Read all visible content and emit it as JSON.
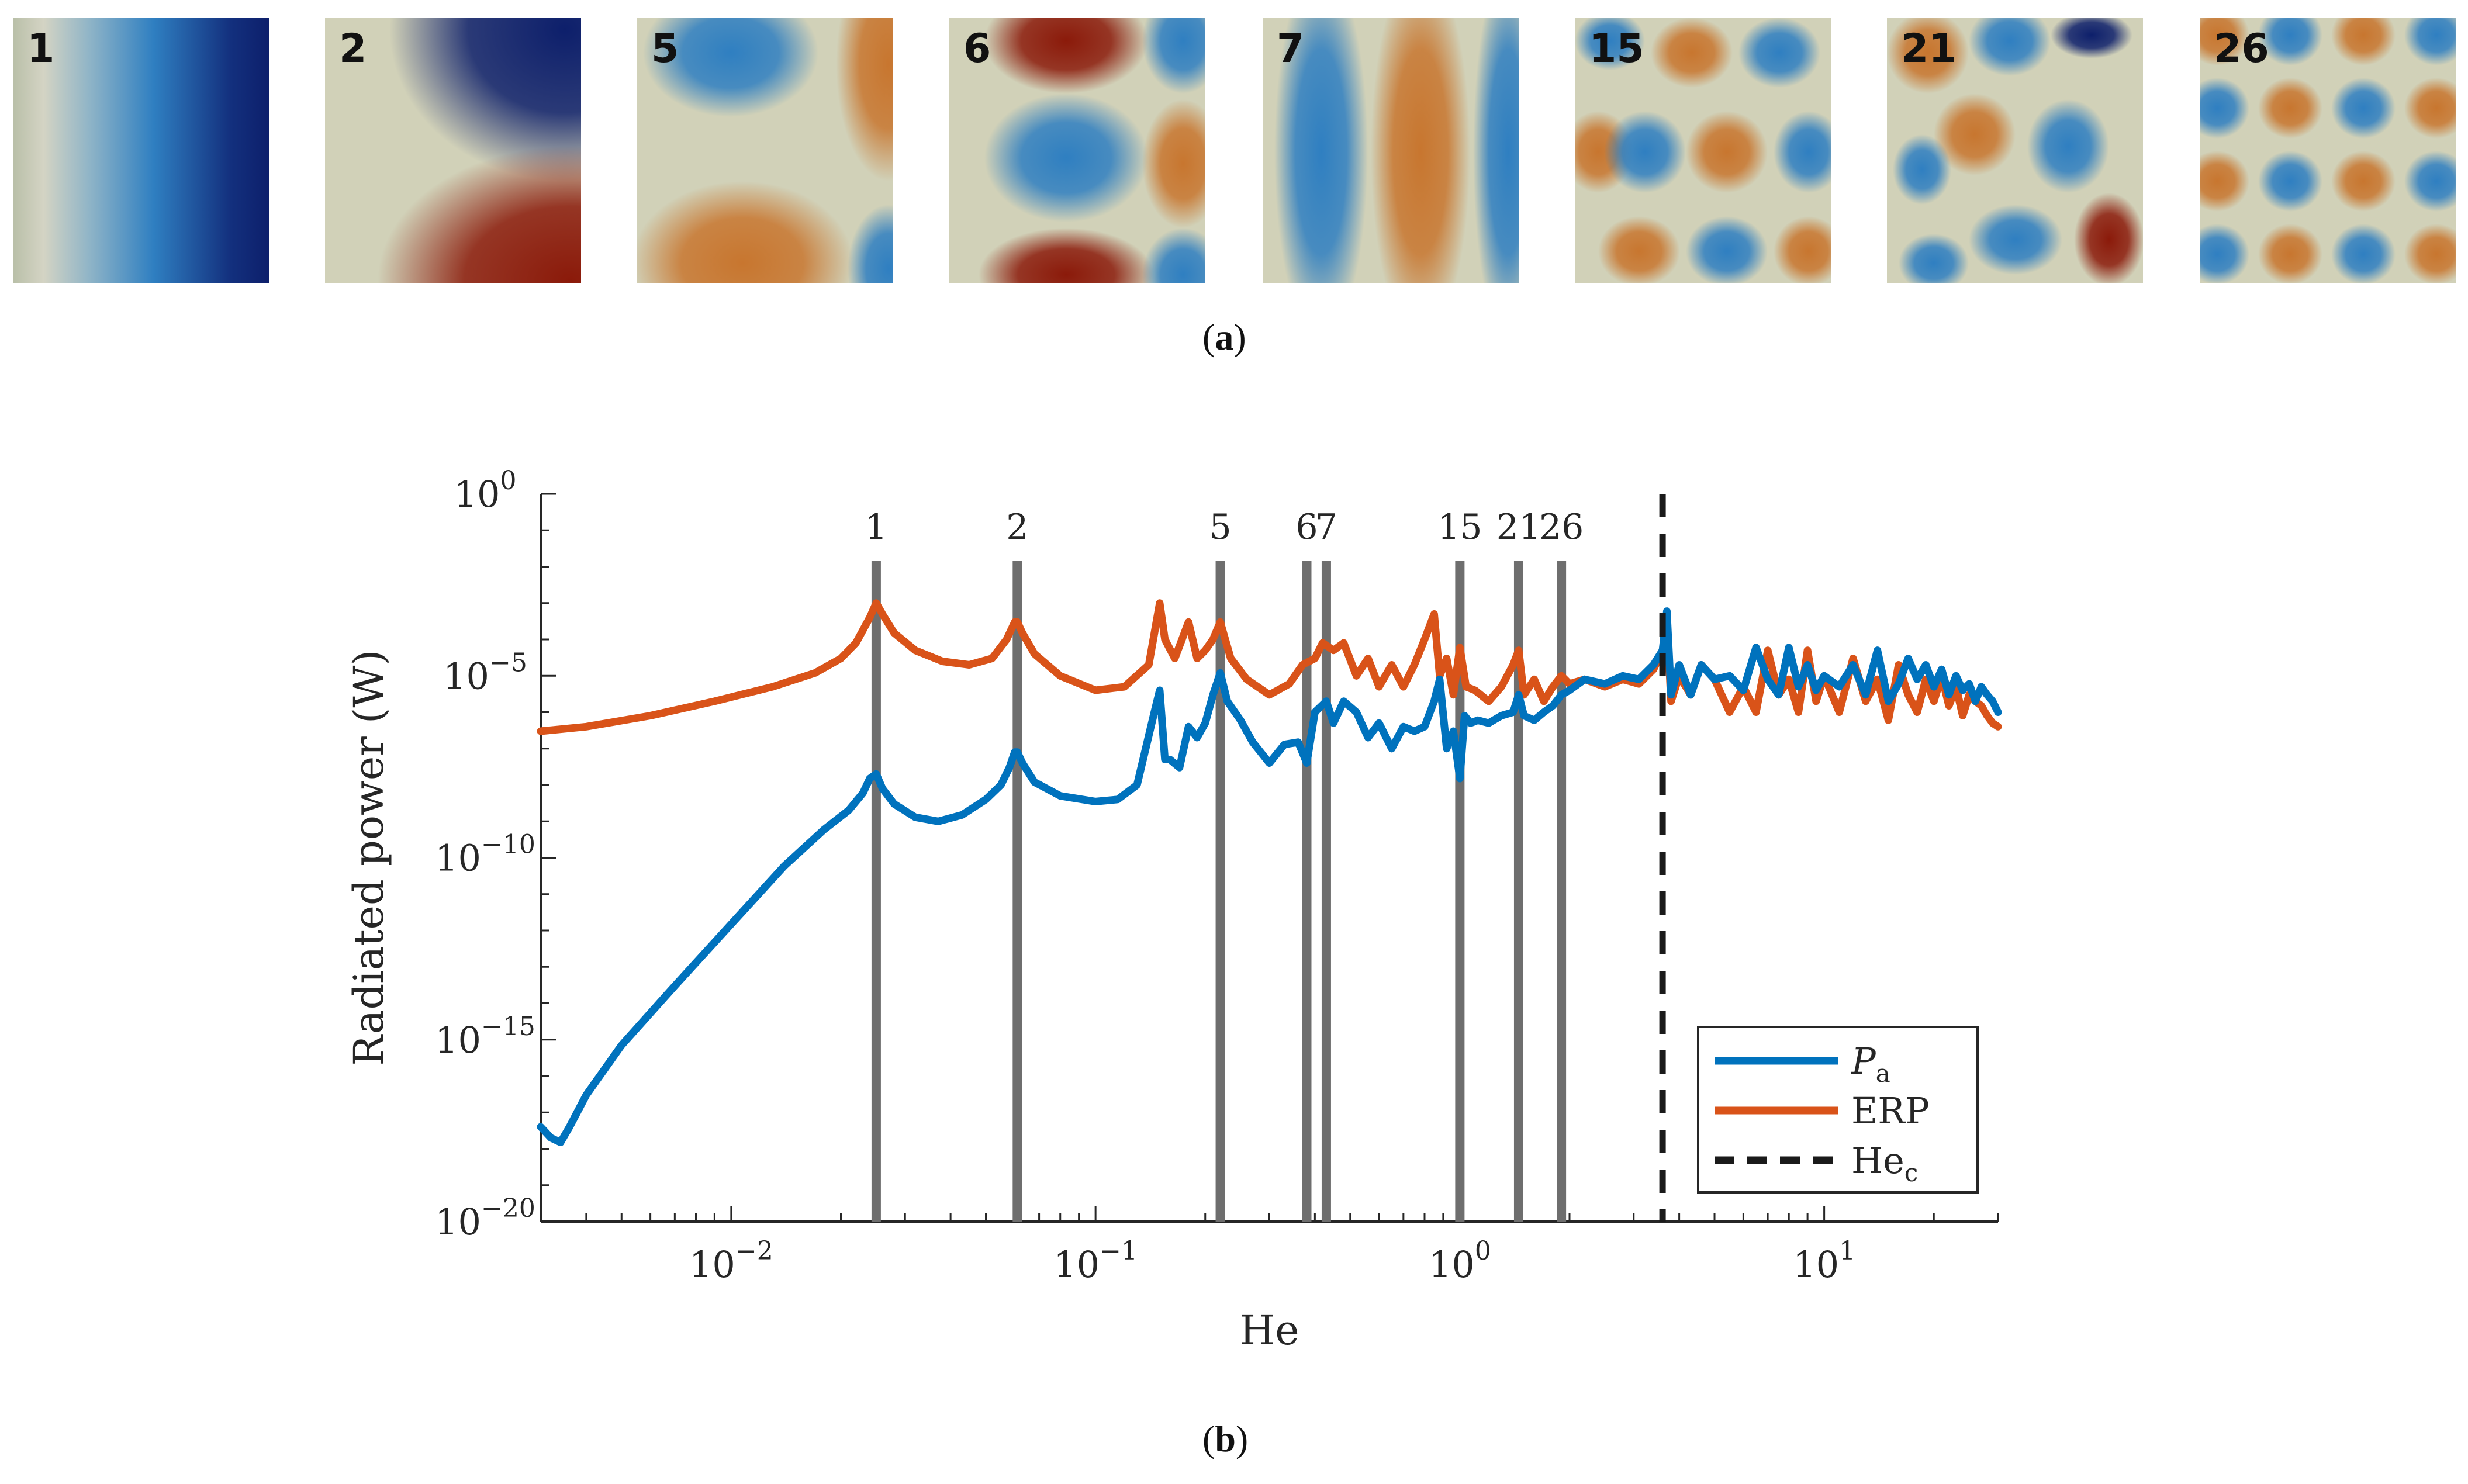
{
  "panel_a": {
    "caption_letter": "a",
    "modes": [
      {
        "label": "1",
        "pattern": "m1"
      },
      {
        "label": "2",
        "pattern": "m2"
      },
      {
        "label": "5",
        "pattern": "m5"
      },
      {
        "label": "6",
        "pattern": "m6"
      },
      {
        "label": "7",
        "pattern": "m7"
      },
      {
        "label": "15",
        "pattern": "m15"
      },
      {
        "label": "21",
        "pattern": "m21"
      },
      {
        "label": "26",
        "pattern": "m26"
      }
    ],
    "colormap": {
      "low": "#0d1f6b",
      "mid_low": "#2f7fc1",
      "mid": "#d4d4c4",
      "mid_high": "#c8762f",
      "high": "#8b1a0a"
    }
  },
  "panel_b": {
    "caption_letter": "b"
  },
  "chart_data": {
    "type": "line",
    "xscale": "log",
    "yscale": "log",
    "xlim": [
      0.003,
      30
    ],
    "ylim": [
      1e-20,
      1
    ],
    "xlabel": "He",
    "ylabel": "Radiated power (W)",
    "x_ticks": [
      {
        "value": 0.01,
        "base": "10",
        "exp": "−2"
      },
      {
        "value": 0.1,
        "base": "10",
        "exp": "−1"
      },
      {
        "value": 1,
        "base": "10",
        "exp": "0"
      },
      {
        "value": 10,
        "base": "10",
        "exp": "1"
      }
    ],
    "y_ticks": [
      {
        "value": 1,
        "base": "10",
        "exp": "0"
      },
      {
        "value": 1e-05,
        "base": "10",
        "exp": "−5"
      },
      {
        "value": 1e-10,
        "base": "10",
        "exp": "−10"
      },
      {
        "value": 1e-15,
        "base": "10",
        "exp": "−15"
      },
      {
        "value": 1e-20,
        "base": "10",
        "exp": "−20"
      }
    ],
    "mode_lines": [
      {
        "label": "1",
        "x": 0.025
      },
      {
        "label": "2",
        "x": 0.061
      },
      {
        "label": "5",
        "x": 0.22
      },
      {
        "label": "6",
        "x": 0.38
      },
      {
        "label": "7",
        "x": 0.43
      },
      {
        "label": "15",
        "x": 1.0
      },
      {
        "label": "21",
        "x": 1.45
      },
      {
        "label": "26",
        "x": 1.9
      }
    ],
    "critical": {
      "label": "He",
      "subscript": "c",
      "x": 3.6
    },
    "series": [
      {
        "name": "P",
        "subscript": "a",
        "color": "#0072bd",
        "x": [
          0.003,
          0.0032,
          0.0034,
          0.0036,
          0.004,
          0.005,
          0.007,
          0.01,
          0.014,
          0.018,
          0.021,
          0.023,
          0.024,
          0.025,
          0.026,
          0.028,
          0.032,
          0.037,
          0.043,
          0.05,
          0.055,
          0.058,
          0.06,
          0.061,
          0.063,
          0.068,
          0.08,
          0.1,
          0.115,
          0.13,
          0.145,
          0.15,
          0.155,
          0.16,
          0.17,
          0.18,
          0.19,
          0.2,
          0.21,
          0.22,
          0.23,
          0.25,
          0.27,
          0.3,
          0.33,
          0.36,
          0.38,
          0.4,
          0.43,
          0.45,
          0.48,
          0.52,
          0.56,
          0.6,
          0.65,
          0.7,
          0.75,
          0.8,
          0.85,
          0.88,
          0.92,
          0.96,
          1.0,
          1.03,
          1.07,
          1.12,
          1.2,
          1.3,
          1.4,
          1.45,
          1.5,
          1.6,
          1.7,
          1.8,
          1.9,
          2.0,
          2.2,
          2.5,
          2.8,
          3.1,
          3.4,
          3.6,
          3.7,
          3.8,
          4.0,
          4.3,
          4.6,
          5.0,
          5.5,
          6.0,
          6.5,
          7.0,
          7.5,
          8.0,
          8.5,
          9.0,
          9.5,
          10,
          11,
          12,
          13,
          14,
          15,
          16,
          17,
          18,
          19,
          20,
          21,
          22,
          23,
          24,
          25,
          26,
          27,
          28,
          29,
          30
        ],
        "y": [
          4e-18,
          2e-18,
          1.5e-18,
          4e-18,
          3e-17,
          7e-16,
          3e-14,
          1.5e-12,
          6e-11,
          6e-10,
          2e-09,
          6e-09,
          1.5e-08,
          2e-08,
          8e-09,
          3e-09,
          1.3e-09,
          1e-09,
          1.5e-09,
          4e-09,
          1e-08,
          3e-08,
          8e-08,
          8e-08,
          4e-08,
          1.2e-08,
          5e-09,
          3.5e-09,
          4e-09,
          1e-08,
          1e-06,
          4e-06,
          5e-08,
          5e-08,
          3e-08,
          4e-07,
          2e-07,
          5e-07,
          3e-06,
          1.2e-05,
          2e-06,
          6e-07,
          1.5e-07,
          4e-08,
          1.3e-07,
          1.5e-07,
          4e-08,
          1e-06,
          2e-06,
          5e-07,
          2e-06,
          1e-06,
          2e-07,
          5e-07,
          1e-07,
          4e-07,
          3e-07,
          4e-07,
          2e-06,
          8e-06,
          1e-07,
          3e-07,
          1.5e-08,
          8e-07,
          5e-07,
          6e-07,
          5e-07,
          8e-07,
          1e-06,
          3e-06,
          8e-07,
          6e-07,
          1e-06,
          1.5e-06,
          3e-06,
          4e-06,
          8e-06,
          6e-06,
          1e-05,
          8e-06,
          2e-05,
          5e-05,
          0.0006,
          3e-06,
          2e-05,
          3e-06,
          2e-05,
          8e-06,
          1e-05,
          4e-06,
          6e-05,
          8e-06,
          3e-06,
          6e-05,
          5e-06,
          2e-05,
          4e-06,
          1e-05,
          5e-06,
          2e-05,
          3e-06,
          5e-05,
          2e-06,
          6e-06,
          3e-05,
          8e-06,
          2e-05,
          5e-06,
          1.5e-05,
          3e-06,
          1e-05,
          4e-06,
          6e-06,
          2e-06,
          5e-06,
          3e-06,
          2e-06,
          1e-06
        ]
      },
      {
        "name": "ERP",
        "subscript": "",
        "color": "#d95319",
        "x": [
          0.003,
          0.004,
          0.006,
          0.009,
          0.013,
          0.017,
          0.02,
          0.022,
          0.024,
          0.025,
          0.026,
          0.028,
          0.032,
          0.038,
          0.045,
          0.052,
          0.057,
          0.06,
          0.061,
          0.063,
          0.068,
          0.08,
          0.1,
          0.12,
          0.14,
          0.15,
          0.155,
          0.165,
          0.18,
          0.19,
          0.2,
          0.21,
          0.22,
          0.235,
          0.26,
          0.3,
          0.34,
          0.37,
          0.4,
          0.42,
          0.45,
          0.48,
          0.52,
          0.56,
          0.6,
          0.65,
          0.7,
          0.75,
          0.8,
          0.85,
          0.88,
          0.92,
          0.96,
          1.0,
          1.04,
          1.1,
          1.2,
          1.3,
          1.4,
          1.45,
          1.5,
          1.6,
          1.7,
          1.8,
          1.9,
          2.0,
          2.2,
          2.5,
          2.8,
          3.1,
          3.4,
          3.6,
          3.7,
          3.8,
          4.0,
          4.3,
          4.6,
          5.0,
          5.5,
          6.0,
          6.5,
          7.0,
          7.5,
          8.0,
          8.5,
          9.0,
          9.5,
          10,
          11,
          12,
          13,
          14,
          15,
          16,
          17,
          18,
          19,
          20,
          21,
          22,
          23,
          24,
          25,
          26,
          27,
          28,
          29,
          30
        ],
        "y": [
          3e-07,
          4e-07,
          8e-07,
          2e-06,
          5e-06,
          1.2e-05,
          3e-05,
          8e-05,
          0.0004,
          0.001,
          0.0005,
          0.00015,
          5e-05,
          2.5e-05,
          2e-05,
          3e-05,
          0.0001,
          0.0003,
          0.0003,
          0.00015,
          4e-05,
          1e-05,
          4e-06,
          5e-06,
          2e-05,
          0.001,
          0.0001,
          3e-05,
          0.0003,
          3e-05,
          5e-05,
          0.0001,
          0.0003,
          3e-05,
          8e-06,
          3e-06,
          6e-06,
          2e-05,
          3e-05,
          8e-05,
          5e-05,
          8e-05,
          1e-05,
          3e-05,
          5e-06,
          2e-05,
          5e-06,
          2e-05,
          0.0001,
          0.0005,
          1e-05,
          3e-05,
          3e-06,
          6e-05,
          5e-06,
          4e-06,
          2e-06,
          5e-06,
          2e-05,
          5e-05,
          3e-06,
          8e-06,
          2e-06,
          5e-06,
          1e-05,
          6e-06,
          8e-06,
          5e-06,
          8e-06,
          6e-06,
          1.5e-05,
          5e-05,
          0.0003,
          2e-06,
          1e-05,
          3e-06,
          2e-05,
          8e-06,
          1e-06,
          5e-06,
          1e-06,
          5e-05,
          3e-06,
          8e-06,
          1e-06,
          5e-05,
          2e-06,
          1e-05,
          1e-06,
          3e-05,
          2e-06,
          8e-06,
          6e-07,
          2e-05,
          3e-06,
          1e-06,
          8e-06,
          2e-06,
          1e-05,
          1.5e-06,
          5e-06,
          8e-07,
          3e-06,
          2e-06,
          1.5e-06,
          8e-07,
          5e-07,
          4e-07
        ]
      }
    ],
    "legend": {
      "position": "bottom-right",
      "entries": [
        "P_a",
        "ERP",
        "He_c"
      ]
    }
  }
}
